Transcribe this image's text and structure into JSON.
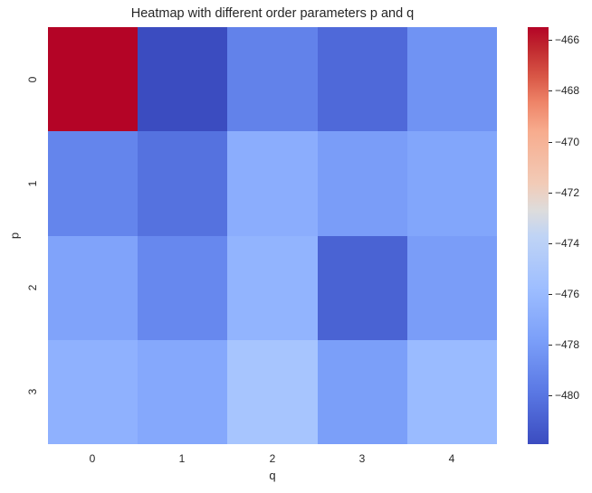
{
  "chart_data": {
    "type": "heatmap",
    "title": "Heatmap with different order parameters p and q",
    "xlabel": "q",
    "ylabel": "p",
    "x_categories": [
      "0",
      "1",
      "2",
      "3",
      "4"
    ],
    "y_categories": [
      "0",
      "1",
      "2",
      "3"
    ],
    "values": [
      [
        -465.5,
        -482.0,
        -480.0,
        -481.0,
        -479.3
      ],
      [
        -480.0,
        -480.6,
        -478.0,
        -478.9,
        -478.5
      ],
      [
        -478.6,
        -479.8,
        -477.7,
        -481.2,
        -478.9
      ],
      [
        -477.8,
        -478.3,
        -476.7,
        -478.9,
        -477.3
      ]
    ],
    "cell_colors": [
      [
        "#b40426",
        "#3b4cc0",
        "#6282ea",
        "#4f69d9",
        "#7093f3"
      ],
      [
        "#6485ec",
        "#5572df",
        "#8badfd",
        "#7a9df8",
        "#82a6fb"
      ],
      [
        "#80a3fa",
        "#6788ee",
        "#92b4fe",
        "#4a63d3",
        "#7a9df8"
      ],
      [
        "#8fb1fe",
        "#85a8fc",
        "#a7c5fe",
        "#7b9ff9",
        "#9abbff"
      ]
    ],
    "colormap": "coolwarm",
    "colorbar": {
      "ticks": [
        "−466",
        "−468",
        "−470",
        "−472",
        "−474",
        "−476",
        "−478",
        "−480"
      ],
      "range": [
        -482.0,
        -465.5
      ]
    },
    "grid": false
  }
}
